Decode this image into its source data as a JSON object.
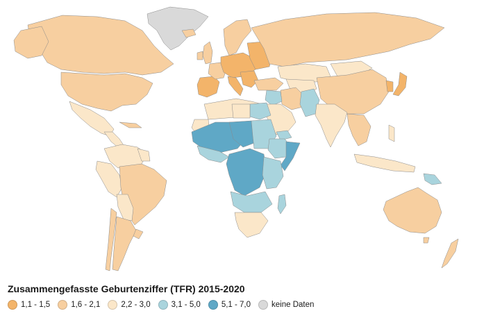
{
  "map": {
    "title": "Zusammengefasste Geburtenziffer (TFR) 2015-2020",
    "colors": {
      "low": "#f3b46a",
      "replacement": "#f7cfa0",
      "mid": "#fbe7c9",
      "high": "#a9d4dd",
      "very_high": "#5fa8c6",
      "no_data": "#d9d9d9",
      "ocean": "#ffffff",
      "border": "#8a8a8a"
    },
    "legend": [
      {
        "label": "1,1 - 1,5",
        "color": "#f3b46a"
      },
      {
        "label": "1,6 - 2,1",
        "color": "#f7cfa0"
      },
      {
        "label": "2,2 - 3,0",
        "color": "#fbe7c9"
      },
      {
        "label": "3,1 - 5,0",
        "color": "#a9d4dd"
      },
      {
        "label": "5,1 - 7,0",
        "color": "#5fa8c6"
      },
      {
        "label": "keine Daten",
        "color": "#d9d9d9"
      }
    ]
  }
}
